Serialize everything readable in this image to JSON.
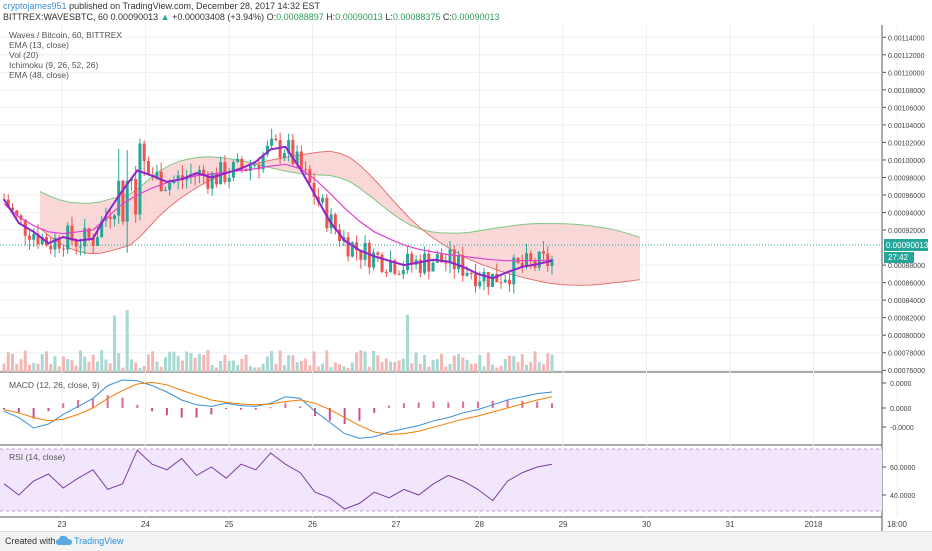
{
  "header": {
    "author": "cryptojames951",
    "published_text": "published on TradingView.com, December 28, 2017 14:32 EST",
    "symbol_line": "BITTREX:WAVESBTC, 60",
    "last_price": "0.00090013",
    "change_arrow": "▲",
    "change": "+0.00003408 (+3.94%)",
    "ohlc": [
      {
        "label": "O:",
        "value": "0.00088897"
      },
      {
        "label": "H:",
        "value": "0.00090013"
      },
      {
        "label": "L:",
        "value": "0.00088375"
      },
      {
        "label": "C:",
        "value": "0.00090013"
      }
    ]
  },
  "main_legend": [
    "Waves / Bitcoin, 60, BITTREX",
    "EMA (13, close)",
    "Vol (20)",
    "Ichimoku (9, 26, 52, 26)",
    "EMA (48, close)"
  ],
  "price_badges": {
    "last_price": "0.00090013",
    "countdown": "27:42"
  },
  "footer": {
    "created_with": "Created with",
    "brand": "TradingView"
  },
  "colors": {
    "up_candle": "#26a69a",
    "down_candle": "#ef5350",
    "ema13": "#8e24c9",
    "ema48": "#e040d0",
    "cloud_bull": "#c8e6c9",
    "cloud_bear": "#f8c8c8",
    "macd": "#3a8fd6",
    "signal": "#f57c00",
    "rsi": "#7b3f9e",
    "rsi_band": "#f1e6fb"
  },
  "chart_data": [
    {
      "type": "candlestick",
      "title": "Waves / Bitcoin, 60, BITTREX",
      "x_tick_labels": [
        "23",
        "24",
        "25",
        "26",
        "27",
        "28",
        "29",
        "30",
        "31",
        "2018",
        "18:00"
      ],
      "y_tick_labels": [
        "0.00114000",
        "0.00112000",
        "0.00110000",
        "0.00108000",
        "0.00106000",
        "0.00104000",
        "0.00102000",
        "0.00100000",
        "0.00098000",
        "0.00096000",
        "0.00094000",
        "0.00092000",
        "0.00088000",
        "0.00086000",
        "0.00084000",
        "0.00082000",
        "0.00080000",
        "0.00078000",
        "0.00076000"
      ],
      "ylim": [
        0.000758,
        0.001154
      ],
      "series": [
        {
          "name": "EMA (13, close)",
          "values": [
            0.000955,
            0.000928,
            0.000918,
            0.000905,
            0.000912,
            0.000908,
            0.00091,
            0.00094,
            0.000965,
            0.000988,
            0.000982,
            0.000975,
            0.000978,
            0.000985,
            0.00098,
            0.000985,
            0.00099,
            0.000998,
            0.001012,
            0.001015,
            0.00099,
            0.00096,
            0.00093,
            0.000908,
            0.000897,
            0.00089,
            0.000885,
            0.00088,
            0.000883,
            0.000886,
            0.000884,
            0.000878,
            0.00087,
            0.000865,
            0.000872,
            0.000878,
            0.000881,
            0.000885
          ]
        },
        {
          "name": "EMA (48, close)",
          "values": [
            0.00095,
            0.000935,
            0.000925,
            0.000918,
            0.000916,
            0.000918,
            0.00092,
            0.000935,
            0.00095,
            0.00096,
            0.000968,
            0.000974,
            0.000978,
            0.000982,
            0.000984,
            0.000986,
            0.000988,
            0.00099,
            0.000993,
            0.000995,
            0.00099,
            0.000978,
            0.000962,
            0.000945,
            0.00093,
            0.000918,
            0.00091,
            0.000903,
            0.000898,
            0.000895,
            0.000892,
            0.00089,
            0.000888,
            0.000886,
            0.000885,
            0.000885,
            0.000885,
            0.000886
          ]
        }
      ],
      "volume_label": "Vol (20)",
      "ichimoku_label": "Ichimoku (9, 26, 52, 26)"
    },
    {
      "type": "line",
      "title": "MACD (12, 26, close, 9)",
      "y_tick_labels": [
        "0.0000",
        "0.0000",
        "-0.0000"
      ],
      "series": [
        {
          "name": "MACD",
          "values": [
            -4,
            -12,
            -25,
            -20,
            -8,
            2,
            12,
            28,
            35,
            34,
            28,
            20,
            10,
            4,
            2,
            6,
            3,
            2,
            6,
            14,
            12,
            -4,
            -18,
            -32,
            -38,
            -36,
            -30,
            -26,
            -22,
            -16,
            -12,
            -6,
            -2,
            4,
            10,
            14,
            18,
            20
          ]
        },
        {
          "name": "Signal",
          "values": [
            -2,
            -6,
            -12,
            -16,
            -14,
            -8,
            0,
            12,
            22,
            30,
            32,
            29,
            22,
            16,
            10,
            7,
            5,
            4,
            5,
            8,
            10,
            6,
            -2,
            -12,
            -22,
            -30,
            -33,
            -32,
            -29,
            -24,
            -19,
            -14,
            -10,
            -5,
            0,
            5,
            10,
            14
          ]
        }
      ]
    },
    {
      "type": "line",
      "title": "RSI (14, close)",
      "y_tick_labels": [
        "60.0000",
        "40.0000"
      ],
      "ylim": [
        25,
        75
      ],
      "series": [
        {
          "name": "RSI",
          "values": [
            48,
            40,
            50,
            55,
            45,
            52,
            58,
            44,
            48,
            72,
            62,
            58,
            66,
            54,
            60,
            52,
            62,
            58,
            70,
            62,
            56,
            42,
            38,
            30,
            34,
            42,
            38,
            44,
            40,
            48,
            54,
            50,
            44,
            36,
            50,
            56,
            60,
            62
          ]
        }
      ]
    }
  ]
}
